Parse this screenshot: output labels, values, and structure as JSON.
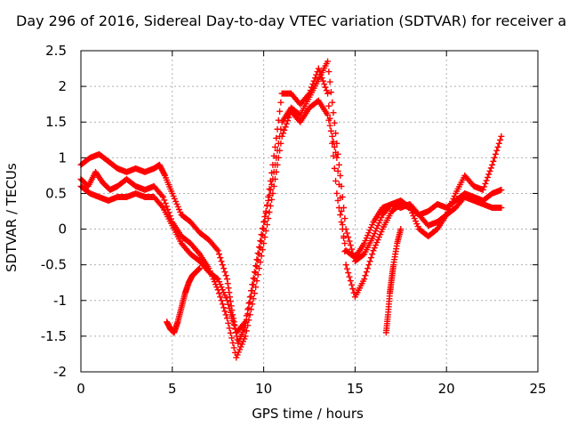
{
  "chart_data": {
    "type": "scatter",
    "title": "Day 296 of 2016, Sidereal Day-to-day VTEC variation (SDTVAR) for receiver a",
    "xlabel": "GPS time / hours",
    "ylabel": "SDTVAR / TECUs",
    "xlim": [
      0,
      25
    ],
    "ylim": [
      -2,
      2.5
    ],
    "xticks": [
      "0",
      "5",
      "10",
      "15",
      "20",
      "25"
    ],
    "yticks": [
      "-2",
      "-1.5",
      "-1",
      "-0.5",
      "0",
      "0.5",
      "1",
      "1.5",
      "2",
      "2.5"
    ],
    "grid": true,
    "marker": "+",
    "color": "#ff0000",
    "series": [
      {
        "x": [
          0,
          0.5,
          1,
          1.5,
          2,
          2.5,
          3,
          3.5,
          4,
          4.3,
          4.6,
          5,
          5.5,
          6,
          6.5,
          7,
          7.5,
          8,
          8.3,
          8.6,
          9,
          9.5,
          10,
          10.5,
          11,
          11.5,
          12,
          12.5,
          13,
          13.5,
          14,
          14.5,
          15,
          15.5,
          16,
          16.5,
          17,
          17.5,
          18,
          18.5,
          19,
          19.5,
          20,
          20.5,
          21,
          21.5,
          22,
          22.5,
          23
        ],
        "y": [
          0.9,
          1.0,
          1.05,
          0.95,
          0.85,
          0.8,
          0.85,
          0.8,
          0.85,
          0.9,
          0.75,
          0.5,
          0.2,
          0.1,
          -0.05,
          -0.15,
          -0.3,
          -0.7,
          -1.2,
          -1.6,
          -1.35,
          -0.7,
          0.0,
          0.9,
          1.9,
          1.9,
          1.75,
          1.9,
          2.25,
          1.9,
          0.5,
          -0.3,
          -0.4,
          -0.2,
          0.1,
          0.3,
          0.35,
          0.3,
          0.35,
          0.2,
          0.05,
          0.1,
          0.2,
          0.5,
          0.75,
          0.6,
          0.55,
          0.9,
          1.3
        ]
      },
      {
        "x": [
          0,
          0.5,
          1,
          1.5,
          2,
          2.5,
          3,
          3.5,
          4,
          4.5,
          5,
          5.5,
          6,
          6.5,
          7,
          7.5,
          8,
          8.5,
          9,
          9.5,
          10,
          10.5,
          11,
          11.5,
          12,
          12.5,
          13,
          13.5,
          14,
          14.5,
          15,
          15.5,
          16,
          16.5,
          17,
          17.5,
          18,
          18.5,
          19,
          19.5,
          20,
          20.5,
          21,
          21.5,
          22,
          22.5,
          23
        ],
        "y": [
          0.6,
          0.5,
          0.45,
          0.4,
          0.45,
          0.45,
          0.5,
          0.45,
          0.45,
          0.3,
          0.05,
          -0.2,
          -0.35,
          -0.45,
          -0.6,
          -0.7,
          -1.0,
          -1.45,
          -1.3,
          -0.6,
          0.1,
          0.7,
          1.5,
          1.7,
          1.6,
          1.85,
          2.1,
          2.35,
          1.2,
          0.0,
          -0.45,
          -0.35,
          -0.1,
          0.2,
          0.35,
          0.4,
          0.3,
          0.0,
          -0.1,
          0.0,
          0.2,
          0.3,
          0.45,
          0.4,
          0.35,
          0.3,
          0.3
        ]
      },
      {
        "x": [
          0,
          0.4,
          0.8,
          1.2,
          1.6,
          2,
          2.5,
          3,
          3.5,
          4,
          4.5,
          5,
          5.5,
          6,
          6.5,
          7,
          7.5,
          8,
          8.5,
          9,
          9.5,
          10,
          10.5,
          11,
          11.5,
          12,
          12.5,
          13,
          13.5,
          14,
          14.5,
          15,
          15.5,
          16,
          16.5,
          17,
          17.5,
          18,
          18.5,
          19,
          19.5,
          20,
          20.5,
          21,
          21.5,
          22,
          22.5,
          23
        ],
        "y": [
          0.7,
          0.6,
          0.8,
          0.65,
          0.55,
          0.6,
          0.7,
          0.6,
          0.55,
          0.6,
          0.45,
          0.1,
          -0.1,
          -0.2,
          -0.35,
          -0.55,
          -0.85,
          -1.25,
          -1.8,
          -1.5,
          -0.9,
          -0.2,
          0.5,
          1.3,
          1.65,
          1.5,
          1.7,
          1.8,
          1.6,
          1.0,
          -0.5,
          -0.95,
          -0.7,
          -0.3,
          0.0,
          0.25,
          0.35,
          0.3,
          0.2,
          0.25,
          0.35,
          0.3,
          0.4,
          0.5,
          0.45,
          0.4,
          0.5,
          0.55
        ]
      },
      {
        "x": [
          4.7,
          4.9,
          5.1,
          5.3,
          5.5,
          5.7,
          5.9,
          6.1,
          6.3,
          6.5
        ],
        "y": [
          -1.3,
          -1.4,
          -1.45,
          -1.3,
          -1.1,
          -0.9,
          -0.75,
          -0.65,
          -0.6,
          -0.55
        ]
      },
      {
        "x": [
          16.7,
          16.8,
          16.9,
          17.0,
          17.1,
          17.3,
          17.5
        ],
        "y": [
          -1.45,
          -1.2,
          -0.9,
          -0.7,
          -0.5,
          -0.2,
          0.0
        ]
      }
    ]
  }
}
